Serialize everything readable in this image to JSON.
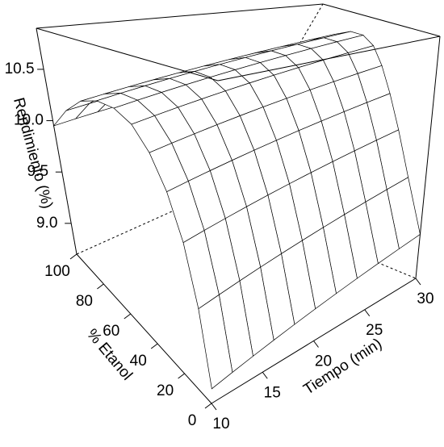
{
  "chart_data": {
    "type": "surface",
    "xlabel": "Tiempo (min)",
    "ylabel": "% Etanol",
    "zlabel": "Rendimiento (%)",
    "x": [
      10,
      12,
      14,
      16,
      18,
      20,
      22,
      24,
      26,
      28,
      30
    ],
    "y": [
      0,
      10,
      20,
      30,
      40,
      50,
      60,
      70,
      80,
      90,
      100
    ],
    "z": [
      [
        8.8,
        9.26,
        9.65,
        9.95,
        10.18,
        10.34,
        10.41,
        10.41,
        10.34,
        10.18,
        9.95
      ],
      [
        8.83,
        9.29,
        9.68,
        9.98,
        10.21,
        10.37,
        10.44,
        10.44,
        10.37,
        10.21,
        9.98
      ],
      [
        8.86,
        9.32,
        9.71,
        10.01,
        10.24,
        10.4,
        10.47,
        10.47,
        10.4,
        10.24,
        10.01
      ],
      [
        8.89,
        9.35,
        9.74,
        10.04,
        10.27,
        10.43,
        10.5,
        10.5,
        10.43,
        10.27,
        10.04
      ],
      [
        8.92,
        9.38,
        9.77,
        10.07,
        10.3,
        10.46,
        10.53,
        10.53,
        10.46,
        10.3,
        10.07
      ],
      [
        8.95,
        9.41,
        9.8,
        10.1,
        10.33,
        10.49,
        10.56,
        10.56,
        10.49,
        10.33,
        10.1
      ],
      [
        8.98,
        9.44,
        9.83,
        10.13,
        10.36,
        10.52,
        10.59,
        10.59,
        10.52,
        10.36,
        10.13
      ],
      [
        9.01,
        9.47,
        9.86,
        10.16,
        10.39,
        10.55,
        10.62,
        10.62,
        10.55,
        10.39,
        10.16
      ],
      [
        9.04,
        9.5,
        9.89,
        10.19,
        10.42,
        10.58,
        10.65,
        10.65,
        10.58,
        10.42,
        10.19
      ],
      [
        9.07,
        9.53,
        9.92,
        10.22,
        10.45,
        10.61,
        10.68,
        10.68,
        10.61,
        10.45,
        10.22
      ],
      [
        9.1,
        9.56,
        9.95,
        10.25,
        10.48,
        10.64,
        10.71,
        10.71,
        10.64,
        10.48,
        10.25
      ]
    ],
    "xlim": [
      10,
      30
    ],
    "ylim": [
      0,
      100
    ],
    "zlim": [
      8.7,
      10.9
    ],
    "xticks": [
      10,
      15,
      20,
      25,
      30
    ],
    "yticks": [
      0,
      20,
      40,
      60,
      80,
      100
    ],
    "zticks": [
      {
        "value": 9,
        "label": "9.0"
      },
      9.5,
      {
        "value": 10,
        "label": "10.0"
      },
      10.5
    ],
    "color": "#ffffff"
  }
}
